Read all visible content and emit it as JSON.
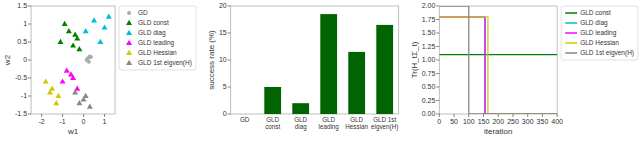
{
  "chart_data": [
    {
      "type": "scatter",
      "xlabel": "w1",
      "ylabel": "w2",
      "xlim": [
        -2.5,
        1.5
      ],
      "ylim": [
        -1.5,
        1.5
      ],
      "xticks": [
        -2,
        -1,
        0,
        1
      ],
      "yticks": [
        -1.5,
        -1,
        -0.5,
        0,
        0.5,
        1,
        1.5
      ],
      "grid": false,
      "legend": "right",
      "series": [
        {
          "name": "GD",
          "color": "#aaaaaa",
          "marker": "point",
          "x": [
            0.2,
            0.3,
            0.15,
            0.25,
            0.35
          ],
          "values": [
            0.05,
            0.1,
            0.0,
            -0.05,
            0.08
          ]
        },
        {
          "name": "GLD const",
          "color": "#008000",
          "marker": "triangle",
          "x": [
            -0.5,
            -0.3,
            -0.7,
            -0.2,
            -0.9,
            -1.1,
            -0.4
          ],
          "values": [
            0.4,
            0.6,
            0.8,
            0.3,
            1.0,
            0.5,
            0.7
          ]
        },
        {
          "name": "GLD diag",
          "color": "#00bcd4",
          "marker": "triangle",
          "x": [
            0.1,
            0.5,
            0.8,
            1.0,
            1.2
          ],
          "values": [
            0.8,
            1.1,
            0.5,
            0.9,
            1.2
          ]
        },
        {
          "name": "GLD leading",
          "color": "#ff00ff",
          "marker": "triangle",
          "x": [
            -0.8,
            -0.5,
            -0.3,
            -1.0,
            -0.6
          ],
          "values": [
            -0.3,
            -0.5,
            -0.8,
            -0.6,
            -0.4
          ]
        },
        {
          "name": "GLD Hessian",
          "color": "#cccc00",
          "marker": "triangle",
          "x": [
            -1.5,
            -1.2,
            -1.8,
            -1.3,
            -1.6
          ],
          "values": [
            -0.8,
            -1.0,
            -0.6,
            -1.2,
            -0.9
          ]
        },
        {
          "name": "GLD 1st eigven(H)",
          "color": "#888888",
          "marker": "triangle",
          "x": [
            -0.2,
            0.1,
            0.3,
            -0.4,
            0.0
          ],
          "values": [
            -1.2,
            -1.0,
            -1.3,
            -0.9,
            -1.1
          ]
        }
      ]
    },
    {
      "type": "bar",
      "ylabel": "success rate (%)",
      "categories": [
        "GD",
        "GLD\nconst",
        "GLD\ndiag",
        "GLD\nleading",
        "GLD\nHessian",
        "GLD 1st\neigven(H)"
      ],
      "values": [
        0.0,
        5.0,
        2.0,
        18.5,
        11.5,
        16.5
      ],
      "color": "#006400",
      "ylim": [
        0,
        20
      ],
      "yticks": [
        0,
        5,
        10,
        15,
        20
      ],
      "grid": false
    },
    {
      "type": "line",
      "xlabel": "iteration",
      "ylabel": "Tr(H_tΣ_t)",
      "xlim": [
        0,
        400
      ],
      "ylim": [
        0.0,
        2.0
      ],
      "xticks": [
        0,
        50,
        100,
        150,
        200,
        250,
        300,
        350,
        400
      ],
      "yticks": [
        {
          "value": 0,
          "label": "0.00"
        },
        0.25,
        {
          "value": 0.5,
          "label": "0.50"
        },
        0.75,
        {
          "value": 1,
          "label": "1.00"
        },
        1.25,
        {
          "value": 1.5,
          "label": "1.50"
        },
        1.75,
        {
          "value": 2,
          "label": "2.00"
        }
      ],
      "grid": false,
      "legend": "right",
      "series": [
        {
          "name": "GLD const",
          "color": "#008000",
          "x": [
            0,
            400,
            400,
            400
          ],
          "values": [
            1.1,
            1.1,
            1.1,
            1.1
          ]
        },
        {
          "name": "GLD diag",
          "color": "#00bcd4",
          "x": [
            0,
            155,
            155,
            400
          ],
          "values": [
            1.8,
            1.8,
            0.0,
            0.0
          ]
        },
        {
          "name": "GLD leading",
          "color": "#ff00ff",
          "x": [
            0,
            155,
            155,
            400
          ],
          "values": [
            1.8,
            1.8,
            0.0,
            0.0
          ]
        },
        {
          "name": "GLD Hessian",
          "color": "#cccc00",
          "x": [
            0,
            165,
            165,
            400
          ],
          "values": [
            1.8,
            1.8,
            0.0,
            0.0
          ]
        },
        {
          "name": "GLD 1st eigven(H)",
          "color": "#888888",
          "x": [
            0,
            100,
            100,
            400
          ],
          "values": [
            2.0,
            2.0,
            0.0,
            0.0
          ]
        }
      ]
    }
  ]
}
